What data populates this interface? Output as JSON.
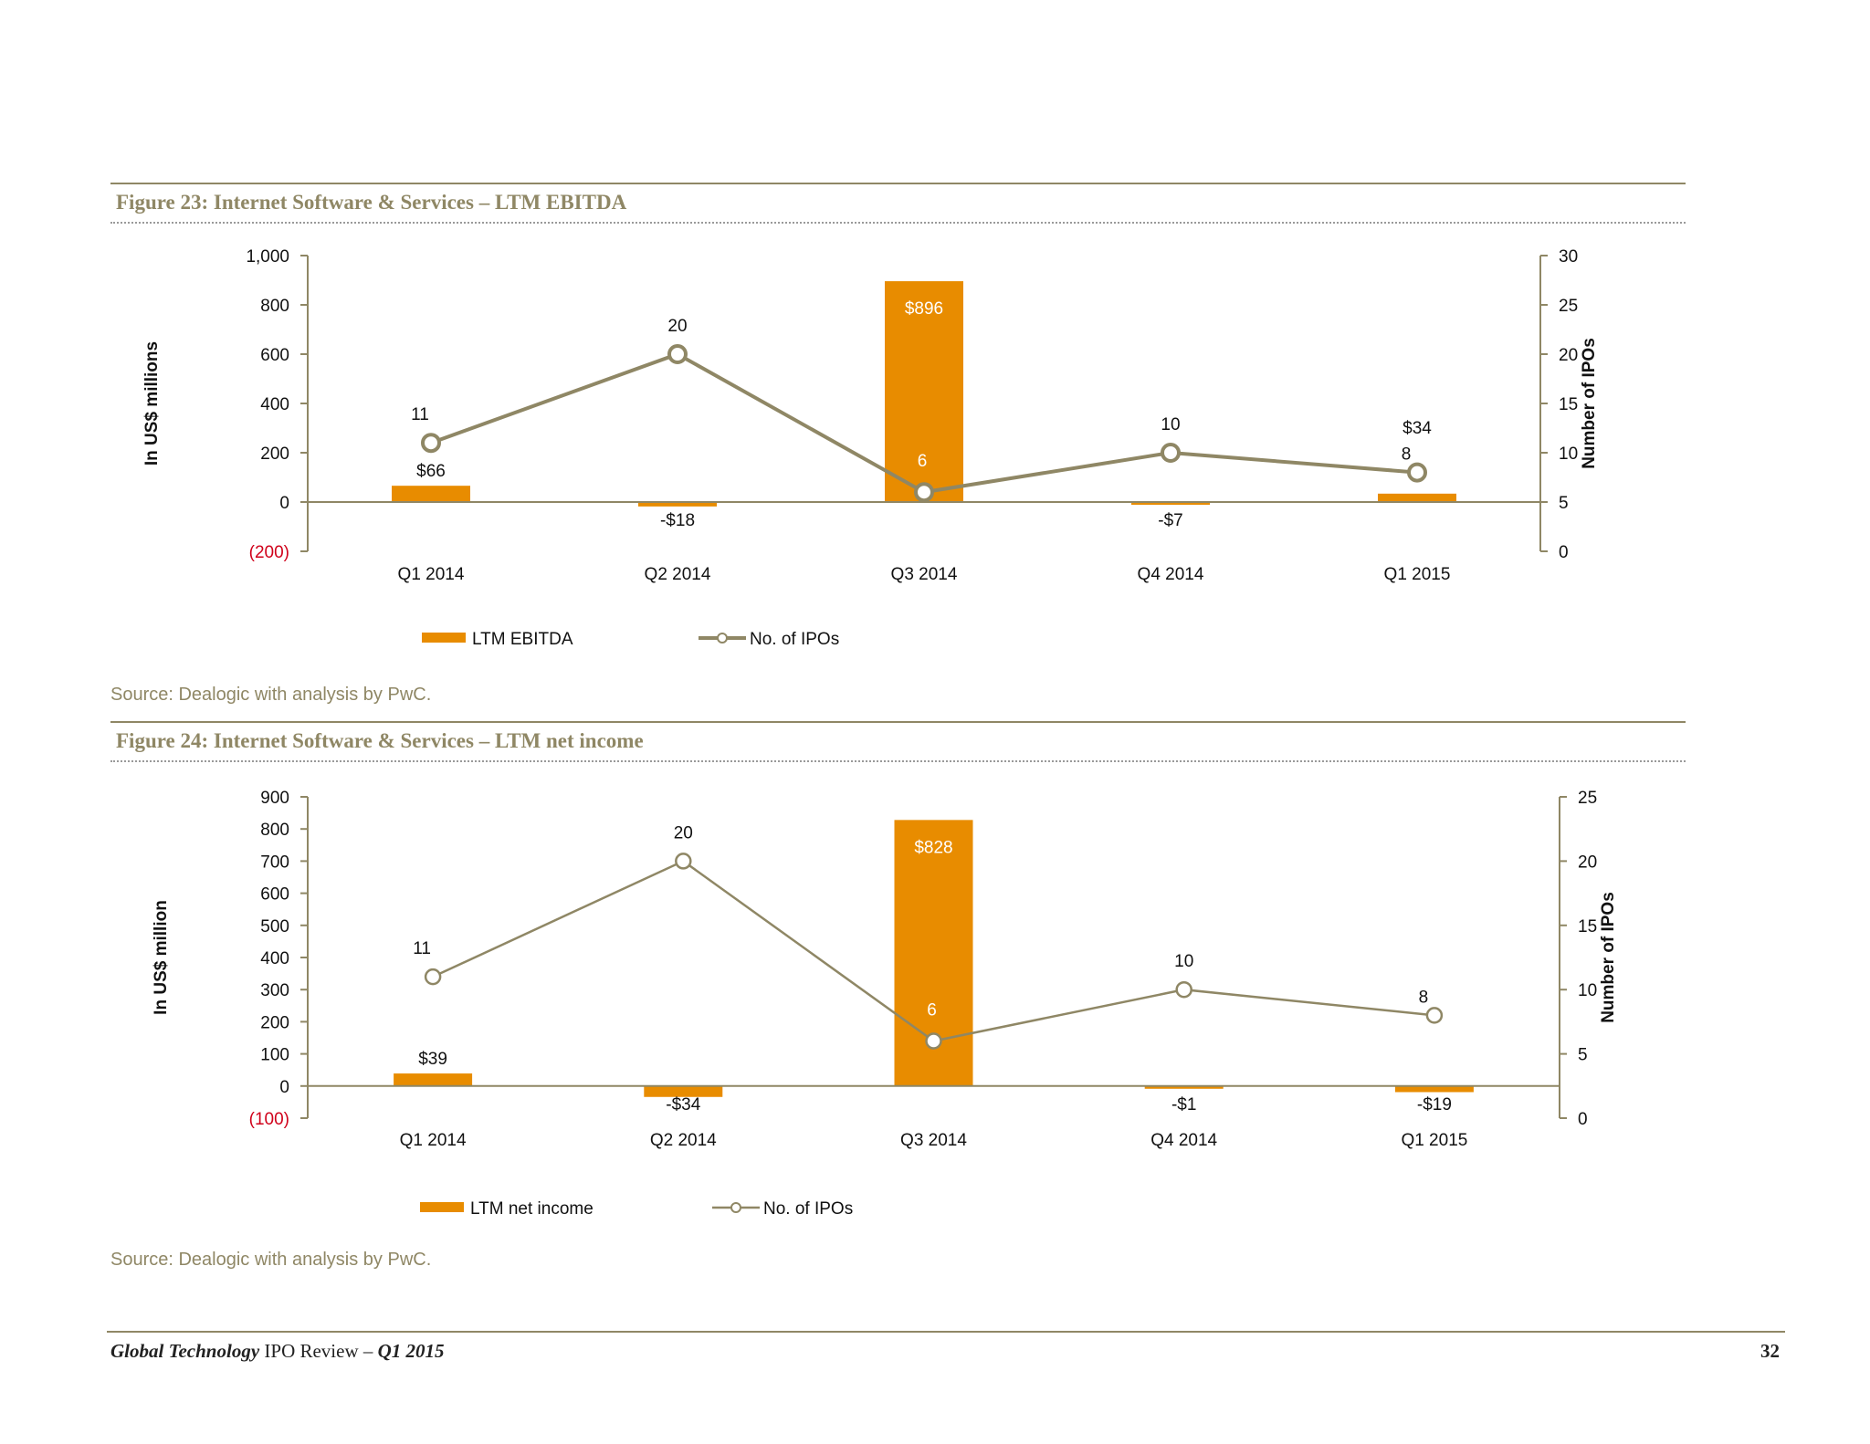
{
  "figures": [
    {
      "title": "Figure 23: Internet Software & Services – LTM EBITDA",
      "source": "Source: Dealogic with analysis by PwC."
    },
    {
      "title": "Figure 24: Internet Software & Services – LTM net income",
      "source": "Source: Dealogic with analysis by PwC."
    }
  ],
  "footer": {
    "title_bold_italic": "Global Technology",
    "title_mid": " IPO Review – ",
    "title_period": "Q1 2015",
    "page_number": "32"
  },
  "colors": {
    "bar": "#e88c00",
    "line": "#8f8765",
    "negative_tick": "#d0021b",
    "axis": "#8f8765"
  },
  "chart_data": [
    {
      "type": "bar",
      "categories": [
        "Q1 2014",
        "Q2 2014",
        "Q3 2014",
        "Q4 2014",
        "Q1 2015"
      ],
      "ylabel": "In US$ millions",
      "y2label": "Number of IPOs",
      "ylim": [
        -200,
        1000
      ],
      "y_ticks": [
        "(200)",
        "0",
        "200",
        "400",
        "600",
        "800",
        "1,000"
      ],
      "y2lim": [
        0,
        30
      ],
      "y2_ticks": [
        "0",
        "5",
        "10",
        "15",
        "20",
        "25",
        "30"
      ],
      "legend_position": "bottom",
      "series": [
        {
          "name": "LTM EBITDA",
          "type": "bar",
          "axis": "left",
          "values": [
            66,
            -18,
            896,
            -7,
            34
          ],
          "labels": [
            "$66",
            "-$18",
            "$896",
            "-$7",
            "$34"
          ]
        },
        {
          "name": "No. of IPOs",
          "type": "line",
          "axis": "right",
          "values": [
            11,
            20,
            6,
            10,
            8
          ],
          "labels": [
            "11",
            "20",
            "6",
            "10",
            "8"
          ]
        }
      ]
    },
    {
      "type": "bar",
      "categories": [
        "Q1 2014",
        "Q2 2014",
        "Q3 2014",
        "Q4 2014",
        "Q1 2015"
      ],
      "ylabel": "In US$ million",
      "y2label": "Number of IPOs",
      "ylim": [
        -100,
        900
      ],
      "y_ticks": [
        "(100)",
        "0",
        "100",
        "200",
        "300",
        "400",
        "500",
        "600",
        "700",
        "800",
        "900"
      ],
      "y2lim": [
        0,
        25
      ],
      "y2_ticks": [
        "0",
        "5",
        "10",
        "15",
        "20",
        "25"
      ],
      "legend_position": "bottom",
      "series": [
        {
          "name": "LTM net income",
          "type": "bar",
          "axis": "left",
          "values": [
            39,
            -34,
            828,
            -1,
            -19
          ],
          "labels": [
            "$39",
            "-$34",
            "$828",
            "-$1",
            "-$19"
          ]
        },
        {
          "name": "No. of IPOs",
          "type": "line",
          "axis": "right",
          "values": [
            11,
            20,
            6,
            10,
            8
          ],
          "labels": [
            "11",
            "20",
            "6",
            "10",
            "8"
          ]
        }
      ]
    }
  ]
}
